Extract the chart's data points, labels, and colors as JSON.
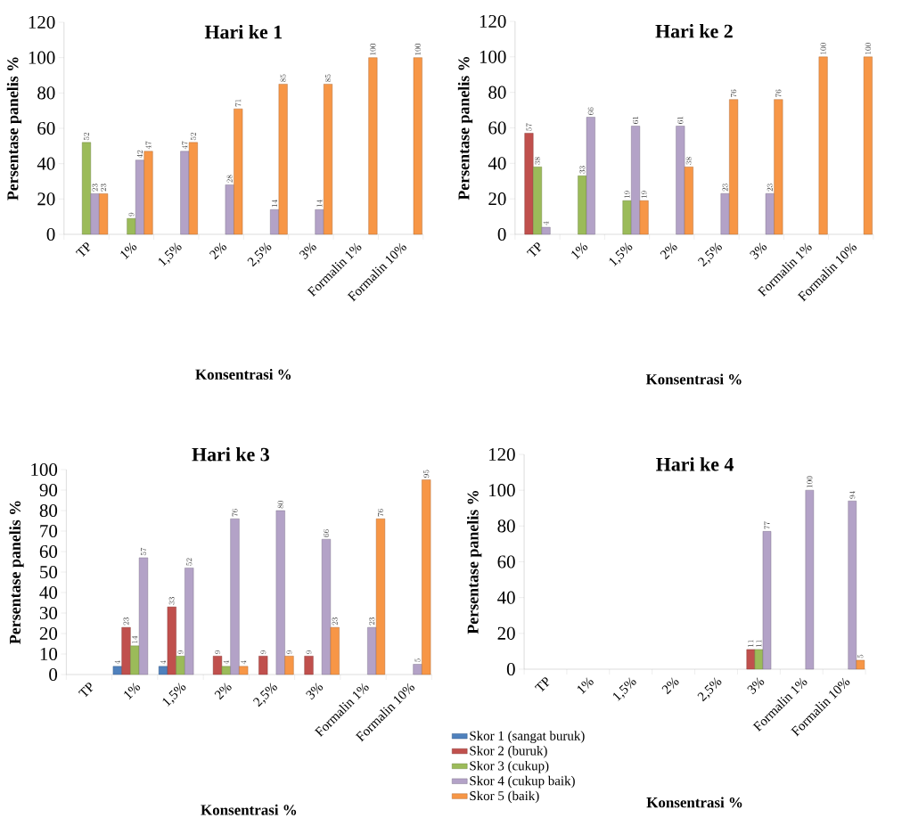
{
  "chart_data": [
    {
      "type": "bar",
      "title": "Hari ke 1",
      "xlabel": "Konsentrasi %",
      "ylabel": "Persentase panelis %",
      "categories": [
        "TP",
        "1%",
        "1,5%",
        "2%",
        "2,5%",
        "3%",
        "Formalin 1%",
        "Formalin 10%"
      ],
      "ylim": [
        0,
        120
      ],
      "yticks": [
        0,
        20,
        40,
        60,
        80,
        100,
        120
      ],
      "data_labels": true,
      "series": [
        {
          "color": "#4f81bd",
          "values": [
            null,
            null,
            null,
            null,
            null,
            null,
            null,
            null
          ]
        },
        {
          "color": "#c0504d",
          "values": [
            null,
            null,
            null,
            null,
            null,
            null,
            null,
            null
          ]
        },
        {
          "color": "#9bbb59",
          "values": [
            52,
            9,
            null,
            null,
            null,
            null,
            null,
            null
          ]
        },
        {
          "color": "#b3a2c7",
          "values": [
            23,
            42,
            47,
            28,
            14,
            14,
            null,
            null
          ]
        },
        {
          "color": "#f79646",
          "values": [
            23,
            47,
            52,
            71,
            85,
            85,
            100,
            100
          ]
        }
      ]
    },
    {
      "type": "bar",
      "title": "Hari ke 2",
      "xlabel": "Konsentrasi %",
      "ylabel": "Persentase panelis %",
      "categories": [
        "TP",
        "1%",
        "1,5%",
        "2%",
        "2,5%",
        "3%",
        "Formalin 1%",
        "Formalin 10%"
      ],
      "ylim": [
        0,
        120
      ],
      "yticks": [
        0,
        20,
        40,
        60,
        80,
        100,
        120
      ],
      "data_labels": true,
      "series": [
        {
          "color": "#4f81bd",
          "values": [
            null,
            null,
            null,
            null,
            null,
            null,
            null,
            null
          ]
        },
        {
          "color": "#c0504d",
          "values": [
            57,
            null,
            null,
            null,
            null,
            null,
            null,
            null
          ]
        },
        {
          "color": "#9bbb59",
          "values": [
            38,
            33,
            19,
            null,
            null,
            null,
            null,
            null
          ]
        },
        {
          "color": "#b3a2c7",
          "values": [
            4,
            66,
            61,
            61,
            23,
            23,
            null,
            null
          ]
        },
        {
          "color": "#f79646",
          "values": [
            null,
            null,
            19,
            38,
            76,
            76,
            100,
            100
          ]
        }
      ]
    },
    {
      "type": "bar",
      "title": "Hari ke 3",
      "xlabel": "Konsentrasi %",
      "ylabel": "Persentase panelis %",
      "categories": [
        "TP",
        "1%",
        "1,5%",
        "2%",
        "2,5%",
        "3%",
        "Formalin 1%",
        "Formalin 10%"
      ],
      "ylim": [
        0,
        100
      ],
      "yticks": [
        0,
        10,
        20,
        30,
        40,
        50,
        60,
        70,
        80,
        90,
        100
      ],
      "data_labels": true,
      "series": [
        {
          "color": "#4f81bd",
          "values": [
            null,
            4,
            4,
            null,
            null,
            null,
            null,
            null
          ]
        },
        {
          "color": "#c0504d",
          "values": [
            null,
            23,
            33,
            9,
            9,
            9,
            null,
            null
          ]
        },
        {
          "color": "#9bbb59",
          "values": [
            null,
            14,
            9,
            4,
            null,
            null,
            null,
            null
          ]
        },
        {
          "color": "#b3a2c7",
          "values": [
            null,
            57,
            52,
            76,
            80,
            66,
            23,
            5
          ]
        },
        {
          "color": "#f79646",
          "values": [
            null,
            null,
            null,
            4,
            9,
            23,
            76,
            95
          ]
        }
      ]
    },
    {
      "type": "bar",
      "title": "Hari ke 4",
      "xlabel": "Konsentrasi %",
      "ylabel": "Persentase panelis %",
      "categories": [
        "TP",
        "1%",
        "1,5%",
        "2%",
        "2,5%",
        "3%",
        "Formalin 1%",
        "Formalin 10%"
      ],
      "ylim": [
        0,
        120
      ],
      "yticks": [
        0,
        20,
        40,
        60,
        80,
        100,
        120
      ],
      "data_labels": true,
      "legend": "bottom left",
      "series": [
        {
          "name": "Skor 1 (sangat buruk)",
          "color": "#4f81bd",
          "values": [
            null,
            null,
            null,
            null,
            null,
            null,
            null,
            null
          ]
        },
        {
          "name": "Skor 2 (buruk)",
          "color": "#c0504d",
          "values": [
            null,
            null,
            null,
            null,
            null,
            11,
            null,
            null
          ]
        },
        {
          "name": "Skor 3 (cukup)",
          "color": "#9bbb59",
          "values": [
            null,
            null,
            null,
            null,
            null,
            11,
            null,
            null
          ]
        },
        {
          "name": "Skor 4 (cukup baik)",
          "color": "#b3a2c7",
          "values": [
            null,
            null,
            null,
            null,
            null,
            77,
            100,
            94
          ]
        },
        {
          "name": "Skor 5 (baik)",
          "color": "#f79646",
          "values": [
            null,
            null,
            null,
            null,
            null,
            null,
            null,
            5
          ]
        }
      ]
    }
  ]
}
